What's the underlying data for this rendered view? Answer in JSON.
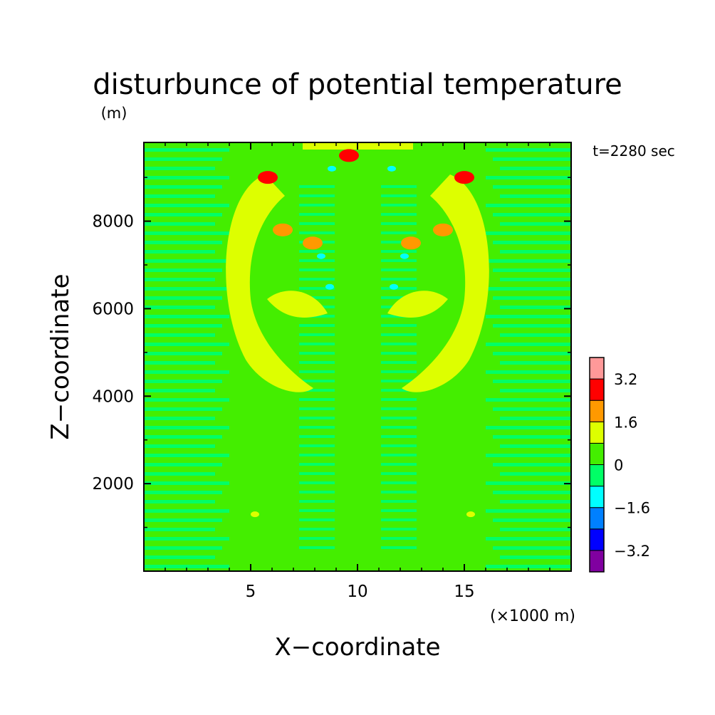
{
  "chart_data": {
    "type": "heatmap",
    "title": "disturbunce of potential temperature",
    "ylabel_unit": "(m)",
    "xlabel": "X−coordinate",
    "ylabel": "Z−coordinate",
    "x_unit_note": "(×1000 m)",
    "time_label": "t=2280 sec",
    "xlim": [
      0,
      20
    ],
    "ylim": [
      0,
      9800
    ],
    "x_ticks": [
      5,
      10,
      15
    ],
    "x_tick_labels": [
      "5",
      "10",
      "15"
    ],
    "y_ticks": [
      2000,
      4000,
      6000,
      8000
    ],
    "y_tick_labels": [
      "2000",
      "4000",
      "6000",
      "8000"
    ],
    "grid": false,
    "colorbar": {
      "placement": "right",
      "levels": [
        -4.0,
        -3.2,
        -2.4,
        -1.6,
        -0.8,
        0,
        0.8,
        1.6,
        2.4,
        3.2,
        4.0
      ],
      "colors": [
        "#8000a0",
        "#0000ff",
        "#0080ff",
        "#00ffff",
        "#00ff66",
        "#44ee00",
        "#ddff00",
        "#ff9900",
        "#ff0000",
        "#ff9999"
      ],
      "tick_labels": [
        "−3.2",
        "−1.6",
        "0",
        "1.6",
        "3.2"
      ],
      "tick_values": [
        -3.2,
        -1.6,
        0,
        1.6,
        3.2
      ]
    },
    "features": [
      {
        "x": 5.8,
        "z": 9000,
        "value": 3.0
      },
      {
        "x": 15.0,
        "z": 9000,
        "value": 3.0
      },
      {
        "x": 9.6,
        "z": 9500,
        "value": 3.0
      },
      {
        "x": 7.9,
        "z": 7500,
        "value": 2.2
      },
      {
        "x": 12.5,
        "z": 7500,
        "value": 2.2
      },
      {
        "x": 6.5,
        "z": 7800,
        "value": 1.8
      },
      {
        "x": 14.0,
        "z": 7800,
        "value": 1.8
      },
      {
        "x": 8.8,
        "z": 9200,
        "value": -1.0
      },
      {
        "x": 11.6,
        "z": 9200,
        "value": -1.0
      },
      {
        "x": 8.3,
        "z": 7200,
        "value": -1.0
      },
      {
        "x": 12.2,
        "z": 7200,
        "value": -1.0
      },
      {
        "x": 8.7,
        "z": 6500,
        "value": -1.0
      },
      {
        "x": 11.7,
        "z": 6500,
        "value": -1.0
      },
      {
        "x": 5.2,
        "z": 1300,
        "value": 1.0
      },
      {
        "x": 15.3,
        "z": 1300,
        "value": 1.0
      }
    ]
  }
}
